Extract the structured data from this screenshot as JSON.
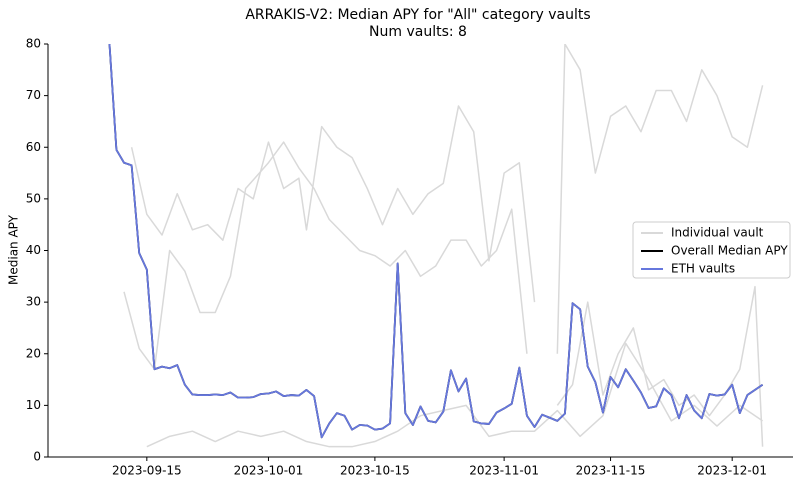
{
  "chart_data": {
    "type": "line",
    "title": "ARRAKIS-V2: Median APY for \"All\" category vaults",
    "subtitle": "Num vaults: 8",
    "ylabel": "Median APY",
    "xlim": [
      "2023-09-02",
      "2023-12-09"
    ],
    "xticks": [
      "2023-09-15",
      "2023-10-01",
      "2023-10-15",
      "2023-11-01",
      "2023-11-15",
      "2023-12-01"
    ],
    "ylim": [
      0,
      80
    ],
    "yticks": [
      0,
      10,
      20,
      30,
      40,
      50,
      60,
      70,
      80
    ],
    "grid": false,
    "legend": "center right",
    "vaults": {
      "name": "Individual vault",
      "color": "#d9d9d9",
      "lines": [
        {
          "x": [
            "2023-09-13",
            "2023-09-15",
            "2023-09-17",
            "2023-09-19",
            "2023-09-21",
            "2023-09-23",
            "2023-09-25",
            "2023-09-27",
            "2023-09-29",
            "2023-10-01",
            "2023-10-03",
            "2023-10-05",
            "2023-10-06",
            "2023-10-08",
            "2023-10-10",
            "2023-10-12",
            "2023-10-14",
            "2023-10-16",
            "2023-10-18",
            "2023-10-20",
            "2023-10-22",
            "2023-10-24",
            "2023-10-26",
            "2023-10-28",
            "2023-10-30",
            "2023-11-01",
            "2023-11-03",
            "2023-11-05"
          ],
          "values": [
            60,
            47,
            43,
            51,
            44,
            45,
            42,
            52,
            50,
            61,
            52,
            54,
            44,
            64,
            60,
            58,
            52,
            45,
            52,
            47,
            51,
            53,
            68,
            63,
            38,
            55,
            57,
            30
          ]
        },
        {
          "x": [
            "2023-09-12",
            "2023-09-14",
            "2023-09-16",
            "2023-09-18",
            "2023-09-20",
            "2023-09-22",
            "2023-09-24",
            "2023-09-26",
            "2023-09-28",
            "2023-10-01",
            "2023-10-03",
            "2023-10-05",
            "2023-10-07",
            "2023-10-09",
            "2023-10-11",
            "2023-10-13",
            "2023-10-15",
            "2023-10-17",
            "2023-10-19",
            "2023-10-21",
            "2023-10-23",
            "2023-10-25",
            "2023-10-27",
            "2023-10-29",
            "2023-10-31",
            "2023-11-02",
            "2023-11-04"
          ],
          "values": [
            32,
            21,
            17,
            40,
            36,
            28,
            28,
            35,
            52,
            57,
            61,
            56,
            52,
            46,
            43,
            40,
            39,
            37,
            40,
            35,
            37,
            42,
            42,
            37,
            40,
            48,
            20
          ]
        },
        {
          "x": [
            "2023-09-15",
            "2023-09-18",
            "2023-09-21",
            "2023-09-24",
            "2023-09-27",
            "2023-09-30",
            "2023-10-03",
            "2023-10-06",
            "2023-10-09",
            "2023-10-12",
            "2023-10-15",
            "2023-10-18",
            "2023-10-21",
            "2023-10-24",
            "2023-10-27",
            "2023-10-30",
            "2023-11-02",
            "2023-11-05",
            "2023-11-08",
            "2023-11-11",
            "2023-11-14",
            "2023-11-17",
            "2023-11-20",
            "2023-11-23",
            "2023-11-26",
            "2023-11-29",
            "2023-12-02",
            "2023-12-05"
          ],
          "values": [
            2,
            4,
            5,
            3,
            5,
            4,
            5,
            3,
            2,
            2,
            3,
            5,
            8,
            9,
            10,
            4,
            5,
            5,
            9,
            4,
            8,
            22,
            15,
            7,
            10,
            6,
            10,
            7
          ]
        },
        {
          "x": [
            "2023-11-08",
            "2023-11-09",
            "2023-11-11",
            "2023-11-13",
            "2023-11-15",
            "2023-11-17",
            "2023-11-19",
            "2023-11-21",
            "2023-11-23",
            "2023-11-25",
            "2023-11-27",
            "2023-11-29",
            "2023-12-01",
            "2023-12-03",
            "2023-12-05"
          ],
          "values": [
            20,
            80,
            75,
            55,
            66,
            68,
            63,
            71,
            71,
            65,
            75,
            70,
            62,
            60,
            72
          ]
        },
        {
          "x": [
            "2023-11-08",
            "2023-11-10",
            "2023-11-12",
            "2023-11-14",
            "2023-11-16",
            "2023-11-18",
            "2023-11-20",
            "2023-11-22",
            "2023-11-24",
            "2023-11-26",
            "2023-11-28",
            "2023-11-30",
            "2023-12-02",
            "2023-12-04",
            "2023-12-05"
          ],
          "values": [
            10,
            14,
            30,
            12,
            20,
            25,
            13,
            15,
            10,
            12,
            8,
            12,
            17,
            33,
            2
          ]
        }
      ]
    },
    "x": [
      "2023-09-10",
      "2023-09-11",
      "2023-09-12",
      "2023-09-13",
      "2023-09-14",
      "2023-09-15",
      "2023-09-16",
      "2023-09-17",
      "2023-09-18",
      "2023-09-19",
      "2023-09-20",
      "2023-09-21",
      "2023-09-22",
      "2023-09-23",
      "2023-09-24",
      "2023-09-25",
      "2023-09-26",
      "2023-09-27",
      "2023-09-28",
      "2023-09-29",
      "2023-09-30",
      "2023-10-01",
      "2023-10-02",
      "2023-10-03",
      "2023-10-04",
      "2023-10-05",
      "2023-10-06",
      "2023-10-07",
      "2023-10-08",
      "2023-10-09",
      "2023-10-10",
      "2023-10-11",
      "2023-10-12",
      "2023-10-13",
      "2023-10-14",
      "2023-10-15",
      "2023-10-16",
      "2023-10-17",
      "2023-10-18",
      "2023-10-19",
      "2023-10-20",
      "2023-10-21",
      "2023-10-22",
      "2023-10-23",
      "2023-10-24",
      "2023-10-25",
      "2023-10-26",
      "2023-10-27",
      "2023-10-28",
      "2023-10-29",
      "2023-10-30",
      "2023-10-31",
      "2023-11-01",
      "2023-11-02",
      "2023-11-03",
      "2023-11-04",
      "2023-11-05",
      "2023-11-06",
      "2023-11-07",
      "2023-11-08",
      "2023-11-09",
      "2023-11-10",
      "2023-11-11",
      "2023-11-12",
      "2023-11-13",
      "2023-11-14",
      "2023-11-15",
      "2023-11-16",
      "2023-11-17",
      "2023-11-18",
      "2023-11-19",
      "2023-11-20",
      "2023-11-21",
      "2023-11-22",
      "2023-11-23",
      "2023-11-24",
      "2023-11-25",
      "2023-11-26",
      "2023-11-27",
      "2023-11-28",
      "2023-11-29",
      "2023-11-30",
      "2023-12-01",
      "2023-12-02",
      "2023-12-03",
      "2023-12-04",
      "2023-12-05"
    ],
    "series": [
      {
        "name": "Overall Median APY",
        "color": "#000000",
        "values": [
          82,
          59.5,
          57,
          56.5,
          39.5,
          36.3,
          17,
          17.5,
          17.2,
          17.8,
          14,
          12.1,
          12,
          12,
          12.1,
          12,
          12.5,
          11.5,
          11.5,
          11.6,
          12.2,
          12.3,
          12.7,
          11.8,
          12,
          11.9,
          13,
          11.8,
          3.8,
          6.5,
          8.5,
          8,
          5.3,
          6.2,
          6.1,
          5.3,
          5.5,
          6.5,
          37.5,
          8.5,
          6.2,
          9.8,
          7,
          6.7,
          8.8,
          16.8,
          12.7,
          15.2,
          6.9,
          6.5,
          6.4,
          8.6,
          9.4,
          10.3,
          17.3,
          8,
          5.8,
          8.2,
          7.6,
          7,
          8.4,
          29.8,
          28.6,
          17.5,
          14.5,
          8.6,
          15.5,
          13.5,
          17,
          14.8,
          12.5,
          9.5,
          9.8,
          13.3,
          12,
          7.5,
          12,
          9,
          7.5,
          12.2,
          11.9,
          12.1,
          14,
          8.5,
          12,
          13,
          14
        ]
      },
      {
        "name": "ETH vaults",
        "color": "#6677dd",
        "values": [
          82,
          59.5,
          57,
          56.5,
          39.5,
          36.3,
          17,
          17.5,
          17.2,
          17.8,
          14,
          12.1,
          12,
          12,
          12.1,
          12,
          12.5,
          11.5,
          11.5,
          11.6,
          12.2,
          12.3,
          12.7,
          11.8,
          12,
          11.9,
          13,
          11.8,
          3.8,
          6.5,
          8.5,
          8,
          5.3,
          6.2,
          6.1,
          5.3,
          5.5,
          6.5,
          37.5,
          8.5,
          6.2,
          9.8,
          7,
          6.7,
          8.8,
          16.8,
          12.7,
          15.2,
          6.9,
          6.5,
          6.4,
          8.6,
          9.4,
          10.3,
          17.3,
          8,
          5.8,
          8.2,
          7.6,
          7,
          8.4,
          29.8,
          28.6,
          17.5,
          14.5,
          8.6,
          15.5,
          13.5,
          17,
          14.8,
          12.5,
          9.5,
          9.8,
          13.3,
          12,
          7.5,
          12,
          9,
          7.5,
          12.2,
          11.9,
          12.1,
          14,
          8.5,
          12,
          13,
          14
        ]
      }
    ]
  }
}
